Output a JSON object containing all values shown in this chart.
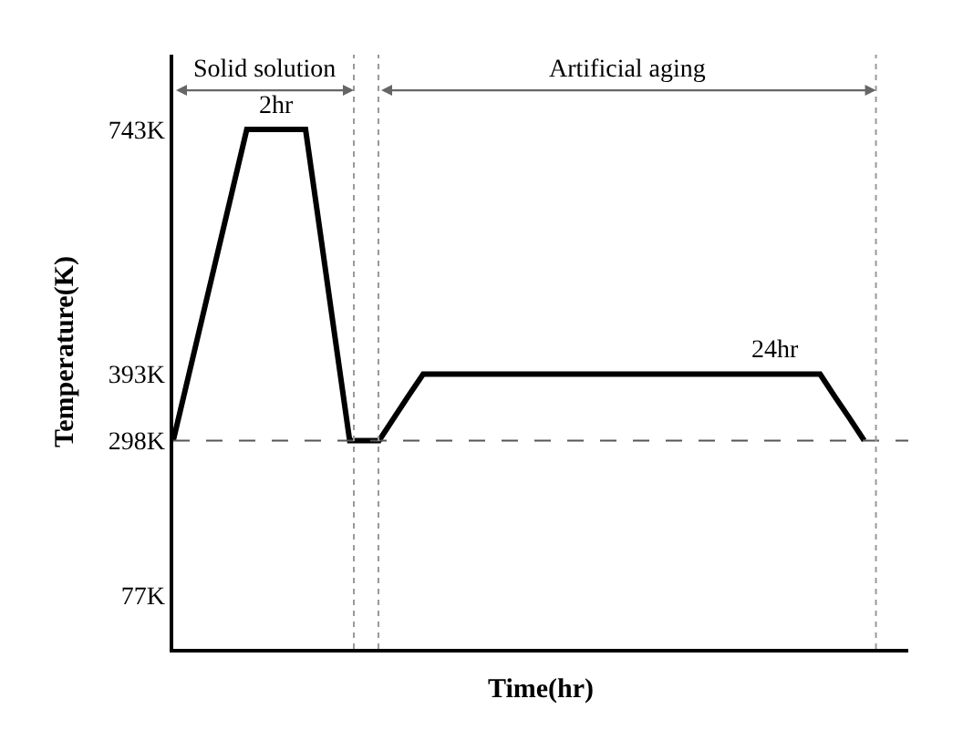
{
  "chart_data": {
    "type": "line",
    "xlabel": "Time(hr)",
    "ylabel": "Temperature(K)",
    "categories": [
      null,
      null,
      null,
      null,
      null,
      null,
      null,
      null,
      null,
      null,
      null,
      null,
      null,
      null,
      null,
      null,
      null,
      null,
      null,
      null,
      null,
      null,
      null,
      null,
      null,
      null,
      null,
      null,
      null,
      null,
      null,
      null,
      null,
      null,
      null,
      null,
      null,
      null,
      null,
      null,
      null,
      null,
      null,
      null,
      null,
      null,
      null,
      null
    ],
    "series": [
      {
        "color": "#000000",
        "values": [
          298,
          387,
          476,
          565,
          654,
          743,
          743,
          743,
          743,
          743,
          595,
          446,
          298,
          298,
          298,
          330,
          362,
          393,
          393,
          393,
          393,
          393,
          393,
          393,
          393,
          393,
          393,
          393,
          393,
          393,
          393,
          393,
          393,
          393,
          393,
          393,
          393,
          393,
          393,
          393,
          393,
          393,
          393,
          393,
          393,
          361,
          330,
          298
        ]
      }
    ],
    "ylim": [
      0,
      850
    ],
    "yticks": [
      {
        "value": 77,
        "label": "77K"
      },
      {
        "value": 298,
        "label": "298K"
      },
      {
        "value": 393,
        "label": "393K"
      },
      {
        "value": 743,
        "label": "743K"
      }
    ],
    "tick_labels": "y",
    "legend": false,
    "marker": "none",
    "line_style": "solid",
    "ref_lines": [
      {
        "axis": "y",
        "value": 298,
        "color": "#555555",
        "line_style": "dashed"
      }
    ],
    "annotations": [
      "Solid solution",
      "Artificial aging",
      "2hr",
      "24hr"
    ]
  }
}
